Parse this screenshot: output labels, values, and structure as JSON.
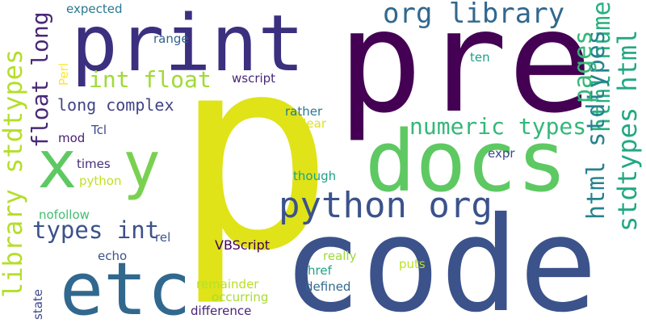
{
  "words": [
    {
      "text": "pre",
      "color": "#440154"
    },
    {
      "text": "print",
      "color": "#3b2f7f"
    },
    {
      "text": "p",
      "color": "#dfe318"
    },
    {
      "text": "code",
      "color": "#3b528b"
    },
    {
      "text": "docs",
      "color": "#5ec962"
    },
    {
      "text": "x",
      "color": "#5ec962"
    },
    {
      "text": "y",
      "color": "#7ad151"
    },
    {
      "text": "etc",
      "color": "#31688e"
    },
    {
      "text": "python org",
      "color": "#3b528b"
    },
    {
      "text": "org library",
      "color": "#31688e"
    },
    {
      "text": "numeric types",
      "color": "#35b779"
    },
    {
      "text": "types int",
      "color": "#3b528b"
    },
    {
      "text": "int float",
      "color": "#a0da39"
    },
    {
      "text": "long complex",
      "color": "#414487"
    },
    {
      "text": "library stdtypes",
      "color": "#b5de2b"
    },
    {
      "text": "float long",
      "color": "#482878"
    },
    {
      "text": "stdtypes html",
      "color": "#22a884"
    },
    {
      "text": "html numeric",
      "color": "#29af7f"
    },
    {
      "text": "html stdtypes",
      "color": "#26828e"
    },
    {
      "text": "pages",
      "color": "#35b779"
    },
    {
      "text": "expected",
      "color": "#2a788e"
    },
    {
      "text": "range",
      "color": "#33638d"
    },
    {
      "text": "wscript",
      "color": "#482878"
    },
    {
      "text": "ten",
      "color": "#1f9e89"
    },
    {
      "text": "Perl",
      "color": "#fde725"
    },
    {
      "text": "rather",
      "color": "#2a788e"
    },
    {
      "text": "clear",
      "color": "#dfe318"
    },
    {
      "text": "Tcl",
      "color": "#3e4989"
    },
    {
      "text": "mod",
      "color": "#481f70"
    },
    {
      "text": "times",
      "color": "#472c7a"
    },
    {
      "text": "python",
      "color": "#c2df23"
    },
    {
      "text": "expr",
      "color": "#3e4a89"
    },
    {
      "text": "though",
      "color": "#1fa088"
    },
    {
      "text": "nofollow",
      "color": "#42be71"
    },
    {
      "text": "rel",
      "color": "#39568c"
    },
    {
      "text": "VBScript",
      "color": "#440154"
    },
    {
      "text": "really",
      "color": "#9fda3a"
    },
    {
      "text": "echo",
      "color": "#3b528b"
    },
    {
      "text": "href",
      "color": "#20a386"
    },
    {
      "text": "puts",
      "color": "#bddf26"
    },
    {
      "text": "remainder",
      "color": "#b8de29"
    },
    {
      "text": "defined",
      "color": "#31688e"
    },
    {
      "text": "occurring",
      "color": "#a8db34"
    },
    {
      "text": "state",
      "color": "#3e4989"
    },
    {
      "text": "difference",
      "color": "#482475"
    }
  ]
}
